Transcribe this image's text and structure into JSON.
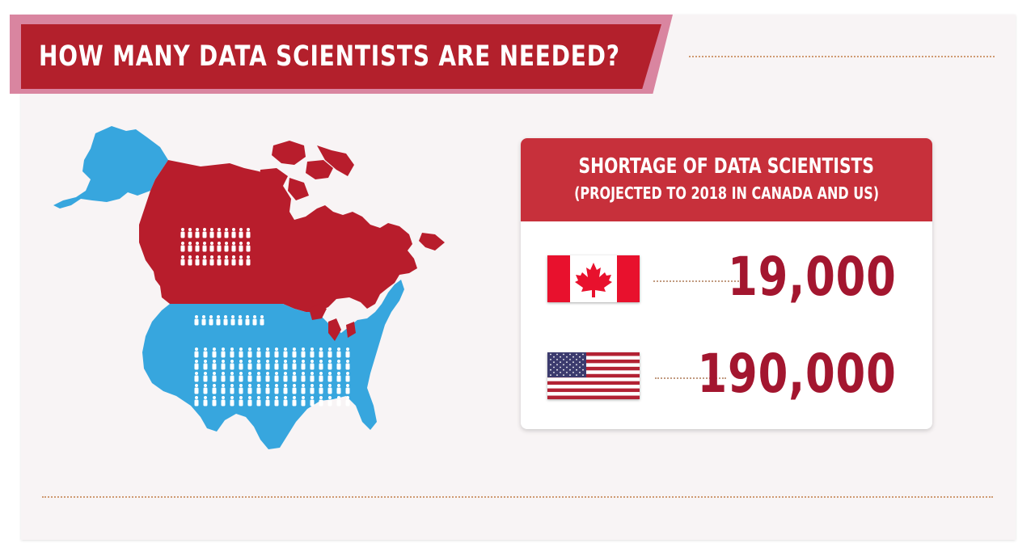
{
  "title": "HOW MANY DATA SCIENTISTS ARE NEEDED?",
  "card": {
    "title": "SHORTAGE OF DATA SCIENTISTS",
    "subtitle": "(PROJECTED TO 2018 IN CANADA AND US)"
  },
  "rows": [
    {
      "country_flag": "canada-flag-icon",
      "value": "19,000"
    },
    {
      "country_flag": "us-flag-icon",
      "value": "190,000"
    }
  ],
  "map": {
    "canada_people_icons": 30,
    "us_people_icons": 100
  },
  "colors": {
    "canada": "#b81d2c",
    "us": "#37a6de",
    "banner": "#b3202c",
    "banner_back": "#d985a0",
    "value_text": "#a3162f",
    "dotted": "#cf9a72"
  }
}
